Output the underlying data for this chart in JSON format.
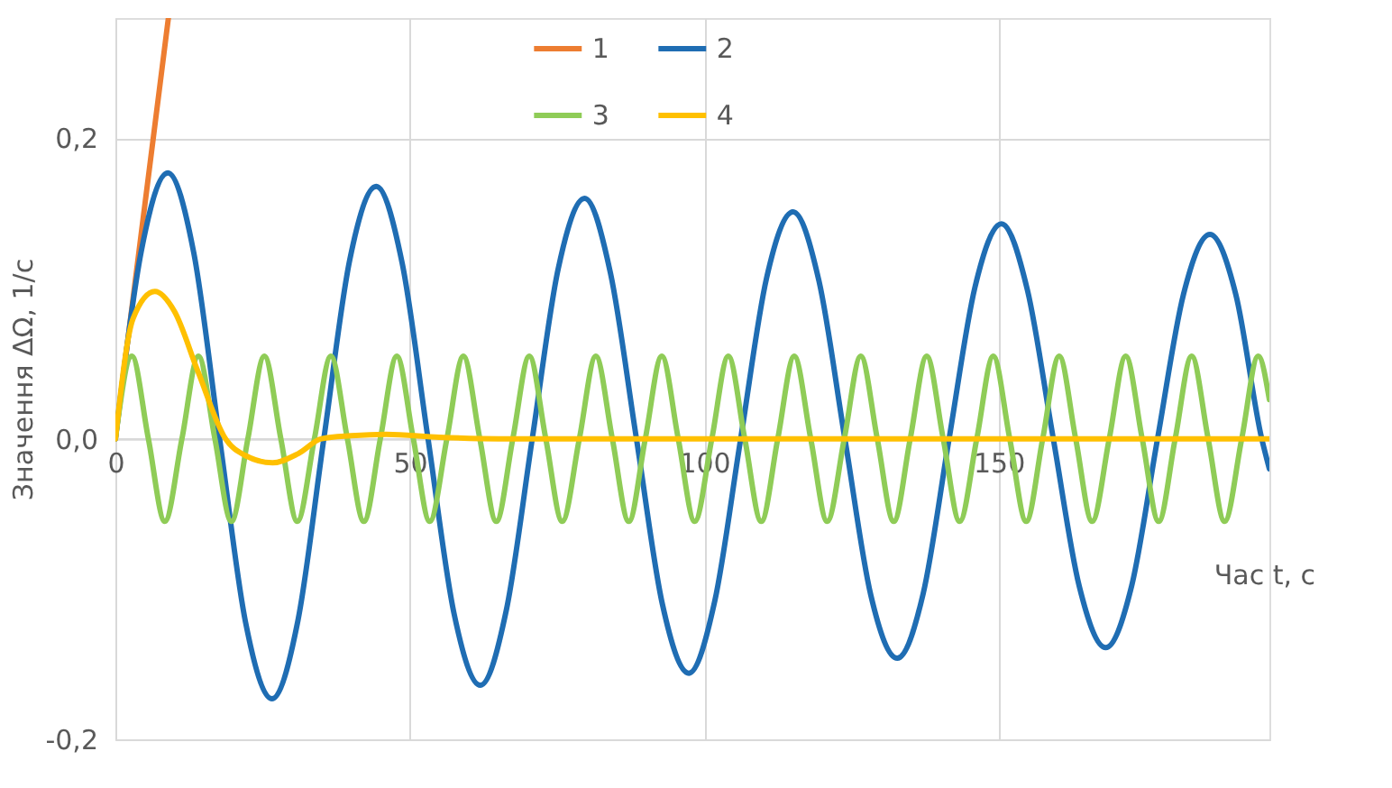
{
  "chart_data": {
    "type": "line",
    "xlabel": "Час t, с",
    "ylabel": "Значення ΔΩ, 1/с",
    "xlim": [
      0,
      196
    ],
    "xticks": [
      0,
      50,
      100,
      150
    ],
    "ylim": [
      -0.2,
      0.28
    ],
    "yticks": [
      {
        "value": -0.2,
        "label": "-0,2"
      },
      {
        "value": 0,
        "label": "0,0"
      },
      {
        "value": 0.2,
        "label": "0,2"
      }
    ],
    "grid": true,
    "legend": "top",
    "marker": "none",
    "line_style": "solid",
    "series": [
      {
        "name": "1",
        "color": "#ed7d31",
        "x": [
          0,
          9
        ],
        "values": [
          0,
          0.28
        ]
      },
      {
        "name": "2",
        "color": "#1f6db3",
        "x": [
          0,
          4.4,
          8.9,
          13.3,
          17.7,
          22.1,
          26.6,
          31.0,
          35.4,
          39.8,
          44.3,
          48.7,
          53.1,
          57.5,
          62.0,
          66.4,
          70.8,
          75.2,
          79.7,
          84.1,
          88.5,
          92.9,
          97.4,
          101.8,
          106.2,
          110.6,
          115.1,
          119.5,
          123.9,
          128.3,
          132.8,
          137.2,
          141.6,
          146.0,
          150.5,
          154.9,
          159.3,
          163.7,
          168.2,
          172.6,
          177.0,
          181.4,
          185.9,
          190.3,
          194.7,
          196
        ],
        "values": [
          0,
          0.125,
          0.177,
          0.124,
          0,
          -0.122,
          -0.173,
          -0.121,
          0,
          0.119,
          0.168,
          0.117,
          0,
          -0.116,
          -0.164,
          -0.114,
          0,
          0.113,
          0.16,
          0.11,
          0,
          -0.11,
          -0.156,
          -0.108,
          0,
          0.107,
          0.151,
          0.105,
          0,
          -0.104,
          -0.146,
          -0.103,
          0,
          0.101,
          0.143,
          0.099,
          0,
          -0.098,
          -0.139,
          -0.098,
          0,
          0.096,
          0.136,
          0.096,
          0,
          -0.02
        ]
      },
      {
        "name": "3",
        "color": "#8fcc57",
        "x": [
          0,
          2.8,
          5.6,
          8.4,
          11.3,
          14.1,
          16.9,
          19.7,
          22.5,
          25.3,
          28.1,
          30.9,
          33.8,
          36.6,
          39.4,
          42.2,
          45.0,
          47.8,
          50.6,
          53.4,
          56.3,
          59.1,
          61.9,
          64.7,
          67.5,
          70.3,
          73.1,
          75.9,
          78.8,
          81.6,
          84.4,
          87.2,
          90.0,
          92.8,
          95.6,
          98.4,
          101.3,
          104.1,
          106.9,
          109.7,
          112.5,
          115.3,
          118.1,
          120.9,
          123.8,
          126.6,
          129.4,
          132.2,
          135.0,
          137.8,
          140.6,
          143.4,
          146.3,
          149.1,
          151.9,
          154.7,
          157.5,
          160.3,
          163.1,
          165.9,
          168.8,
          171.6,
          174.4,
          177.2,
          180.0,
          182.8,
          185.6,
          188.4,
          191.3,
          194.1,
          196
        ],
        "values": [
          0,
          0.055,
          0,
          -0.055,
          0,
          0.055,
          0,
          -0.055,
          0,
          0.055,
          0,
          -0.055,
          0,
          0.055,
          0,
          -0.055,
          0,
          0.055,
          0,
          -0.055,
          0,
          0.055,
          0,
          -0.055,
          0,
          0.055,
          0,
          -0.055,
          0,
          0.055,
          0,
          -0.055,
          0,
          0.055,
          0,
          -0.055,
          0,
          0.055,
          0,
          -0.055,
          0,
          0.055,
          0,
          -0.055,
          0,
          0.055,
          0,
          -0.055,
          0,
          0.055,
          0,
          -0.055,
          0,
          0.055,
          0,
          -0.055,
          0,
          0.055,
          0,
          -0.055,
          0,
          0.055,
          0,
          -0.055,
          0,
          0.055,
          0,
          -0.055,
          0,
          0.055,
          0.026
        ]
      },
      {
        "name": "4",
        "color": "#ffc000",
        "x": [
          0,
          3,
          6.7,
          10,
          14,
          18.7,
          22,
          26.7,
          31,
          35,
          40,
          46,
          55,
          65,
          196
        ],
        "values": [
          0,
          0.08,
          0.098,
          0.085,
          0.045,
          0,
          -0.011,
          -0.016,
          -0.01,
          0,
          0.002,
          0.003,
          0.001,
          0,
          0
        ]
      }
    ]
  }
}
